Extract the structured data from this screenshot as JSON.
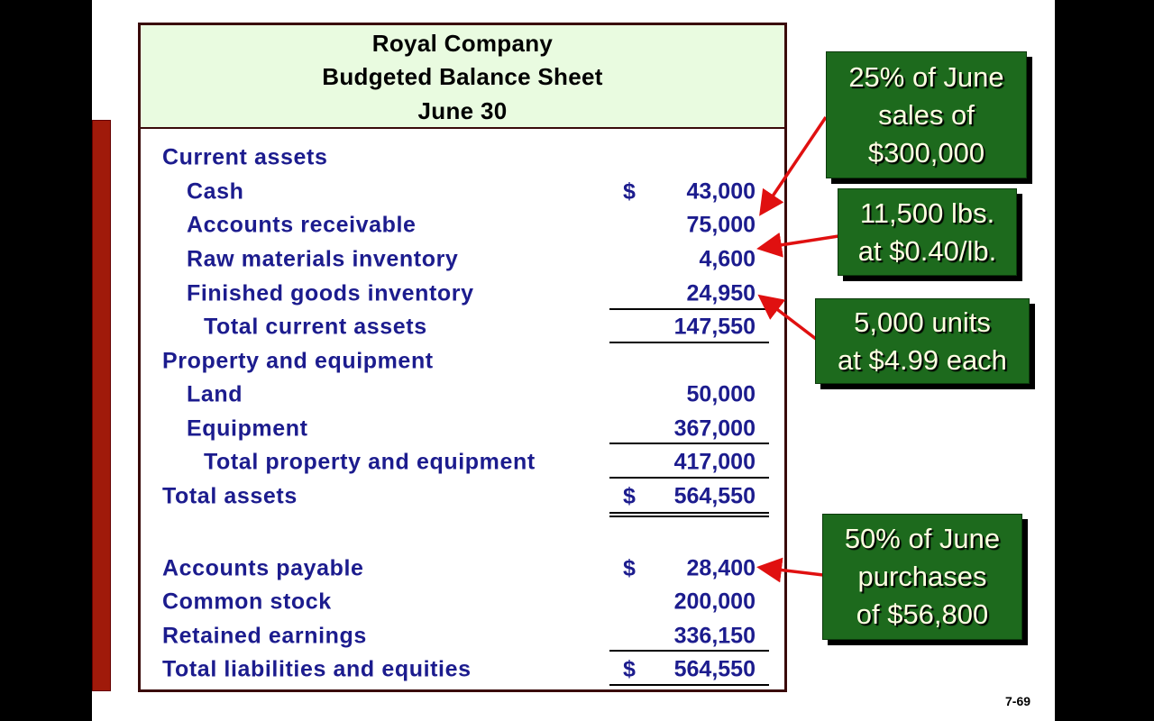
{
  "header": {
    "company": "Royal Company",
    "title": "Budgeted Balance Sheet",
    "date": "June 30"
  },
  "rows": [
    {
      "label": "Current assets",
      "dollar": "",
      "value": ""
    },
    {
      "label": "Cash",
      "dollar": "$",
      "value": "43,000"
    },
    {
      "label": "Accounts receivable",
      "dollar": "",
      "value": "75,000"
    },
    {
      "label": "Raw materials inventory",
      "dollar": "",
      "value": "4,600"
    },
    {
      "label": "Finished goods inventory",
      "dollar": "",
      "value": "24,950"
    },
    {
      "label": "Total current assets",
      "dollar": "",
      "value": "147,550"
    },
    {
      "label": "Property and equipment",
      "dollar": "",
      "value": ""
    },
    {
      "label": "Land",
      "dollar": "",
      "value": "50,000"
    },
    {
      "label": "Equipment",
      "dollar": "",
      "value": "367,000"
    },
    {
      "label": "Total property and equipment",
      "dollar": "",
      "value": "417,000"
    },
    {
      "label": "Total assets",
      "dollar": "$",
      "value": "564,550"
    },
    {
      "label": "Accounts payable",
      "dollar": "$",
      "value": "28,400"
    },
    {
      "label": "Common stock",
      "dollar": "",
      "value": "200,000"
    },
    {
      "label": "Retained earnings",
      "dollar": "",
      "value": "336,150"
    },
    {
      "label": "Total liabilities and equities",
      "dollar": "$",
      "value": "564,550"
    }
  ],
  "callouts": [
    {
      "lines": [
        "25% of June",
        "sales of",
        "$300,000"
      ]
    },
    {
      "lines": [
        "11,500 lbs.",
        "at $0.40/lb."
      ]
    },
    {
      "lines": [
        "5,000 units",
        "at $4.99 each"
      ]
    },
    {
      "lines": [
        "50% of June",
        "purchases",
        "of $56,800"
      ]
    }
  ],
  "colors": {
    "text": "#1c1c8e",
    "callout_bg": "#1d6a1d",
    "header_bg": "#e9fbe0",
    "arrow": "#e01010",
    "accent_bar": "#a01a0a"
  },
  "page_number": "7-69"
}
